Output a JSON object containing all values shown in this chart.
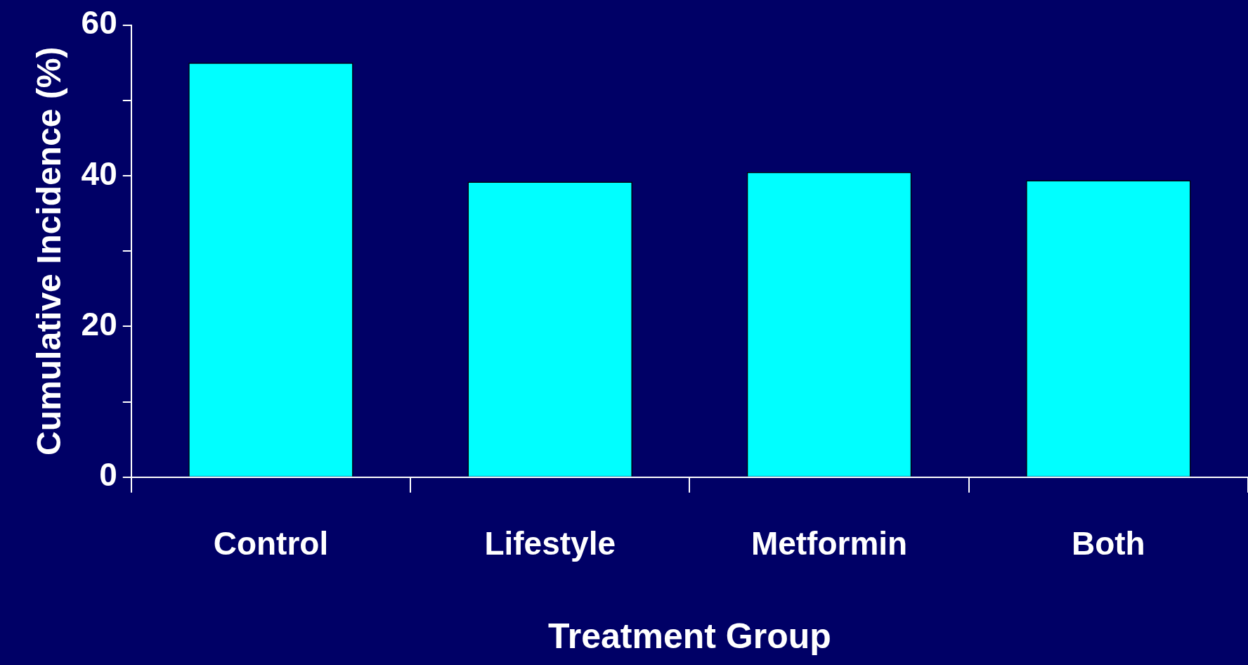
{
  "chart_data": {
    "type": "bar",
    "xlabel": "Treatment Group",
    "ylabel": "Cumulative Incidence (%)",
    "categories": [
      "Control",
      "Lifestyle",
      "Metformin",
      "Both"
    ],
    "values": [
      55,
      39.2,
      40.5,
      39.4
    ],
    "color": "#00ffff",
    "ylim": [
      0,
      60
    ],
    "yticks": [
      0,
      {
        "value": 10,
        "label": null
      },
      20,
      {
        "value": 30,
        "label": null
      },
      40,
      {
        "value": 50,
        "label": null
      },
      60
    ],
    "grid": false,
    "legend": false
  }
}
